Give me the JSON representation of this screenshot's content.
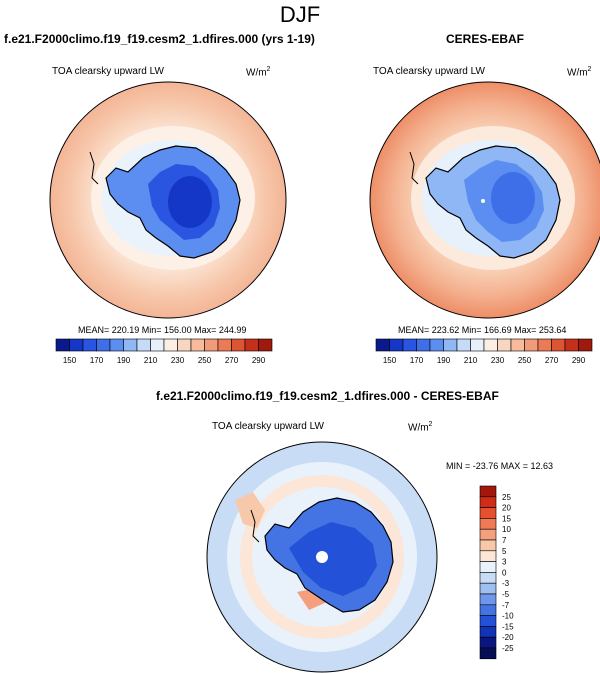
{
  "page": {
    "title": "DJF"
  },
  "panels": [
    {
      "id": "model",
      "title": "f.e21.F2000climo.f19_f19.cesm2_1.dfires.000 (yrs 1-19)",
      "variable": "TOA clearsky upward LW",
      "units_base": "W/m",
      "units_exp": "2",
      "stats": "MEAN= 220.19  Min= 156.00  Max= 244.99"
    },
    {
      "id": "obs",
      "title": "CERES-EBAF",
      "variable": "TOA clearsky upward LW",
      "units_base": "W/m",
      "units_exp": "2",
      "stats": "MEAN= 223.62  Min= 166.69  Max= 253.64"
    },
    {
      "id": "diff",
      "title": "f.e21.F2000climo.f19_f19.cesm2_1.dfires.000 - CERES-EBAF",
      "variable": "TOA clearsky upward LW",
      "units_base": "W/m",
      "units_exp": "2",
      "stats": "MIN = -23.76 MAX =  12.63"
    }
  ],
  "colorbar_abs": {
    "labels": [
      "150",
      "170",
      "190",
      "210",
      "230",
      "250",
      "270",
      "290"
    ],
    "colors": [
      "#0a1a8c",
      "#1537c8",
      "#2a55e0",
      "#3e6fe8",
      "#5b8ef0",
      "#8fb6f5",
      "#c5dcf8",
      "#e7f1fb",
      "#fbeee3",
      "#f8d6bf",
      "#f5bb9c",
      "#f19b78",
      "#eb7a55",
      "#de5433",
      "#c6301a",
      "#9e1a0d"
    ]
  },
  "colorbar_diff": {
    "labels": [
      "25",
      "20",
      "15",
      "10",
      "7",
      "5",
      "3",
      "0",
      "-3",
      "-5",
      "-7",
      "-10",
      "-15",
      "-20",
      "-25"
    ],
    "colors": [
      "#a3170d",
      "#cf2d18",
      "#e6502f",
      "#ef7a55",
      "#f4a07e",
      "#f8c8ab",
      "#fbe6d7",
      "#e9f2fb",
      "#c8dcf5",
      "#9ebff0",
      "#6f98ea",
      "#4474e3",
      "#2352d8",
      "#1232b8",
      "#0a1780",
      "#060e55"
    ]
  }
}
